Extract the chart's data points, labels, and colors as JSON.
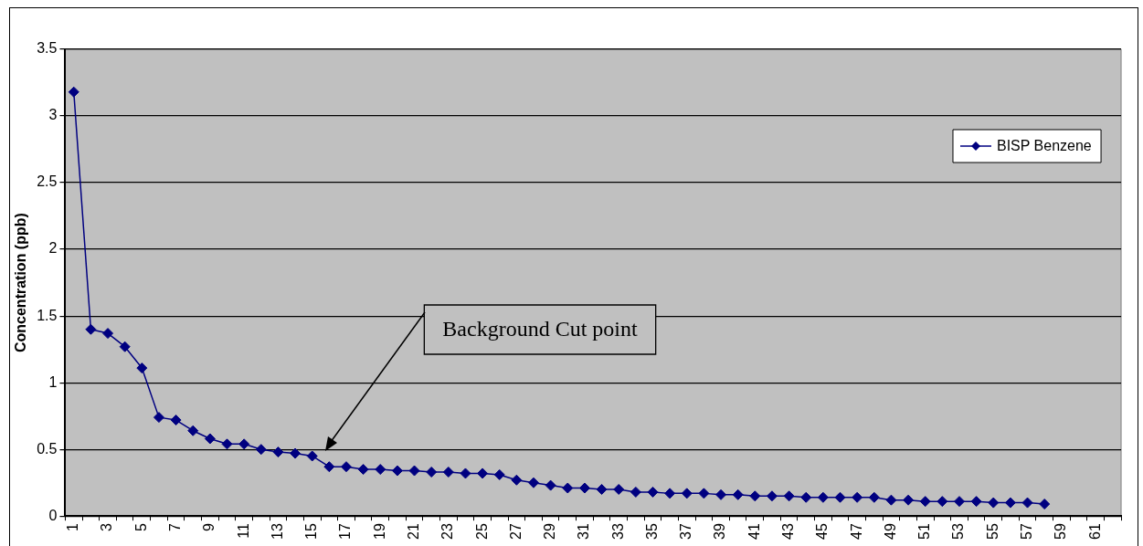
{
  "chart_data": {
    "type": "line",
    "ylabel": "Concentration (ppb)",
    "categories": [
      "1",
      null,
      "3",
      null,
      "5",
      null,
      "7",
      null,
      "9",
      null,
      "11",
      null,
      "13",
      null,
      "15",
      null,
      "17",
      null,
      "19",
      null,
      "21",
      null,
      "23",
      null,
      "25",
      null,
      "27",
      null,
      "29",
      null,
      "31",
      null,
      "33",
      null,
      "35",
      null,
      "37",
      null,
      "39",
      null,
      "41",
      null,
      "43",
      null,
      "45",
      null,
      "47",
      null,
      "49",
      null,
      "51",
      null,
      "53",
      null,
      "55",
      null,
      "57",
      null,
      "59",
      null,
      "61",
      null
    ],
    "series": [
      {
        "name": "BISP Benzene",
        "color": "#000080",
        "values": [
          3.18,
          1.4,
          1.37,
          1.27,
          1.11,
          0.74,
          0.72,
          0.64,
          0.58,
          0.54,
          0.54,
          0.5,
          0.48,
          0.47,
          0.45,
          0.37,
          0.37,
          0.35,
          0.35,
          0.34,
          0.34,
          0.33,
          0.33,
          0.32,
          0.32,
          0.31,
          0.27,
          0.25,
          0.23,
          0.21,
          0.21,
          0.2,
          0.2,
          0.18,
          0.18,
          0.17,
          0.17,
          0.17,
          0.16,
          0.16,
          0.15,
          0.15,
          0.15,
          0.14,
          0.14,
          0.14,
          0.14,
          0.14,
          0.12,
          0.12,
          0.11,
          0.11,
          0.11,
          0.11,
          0.1,
          0.1,
          0.1,
          0.09,
          null,
          null,
          null,
          null
        ]
      }
    ],
    "ylim": [
      0,
      3.5
    ],
    "yticks": [
      0,
      0.5,
      1,
      1.5,
      2,
      2.5,
      3,
      3.5
    ],
    "grid": "y",
    "legend": "top right",
    "marker": "diamond",
    "line_style": "solid",
    "annotations": [
      "Background Cut point"
    ]
  }
}
